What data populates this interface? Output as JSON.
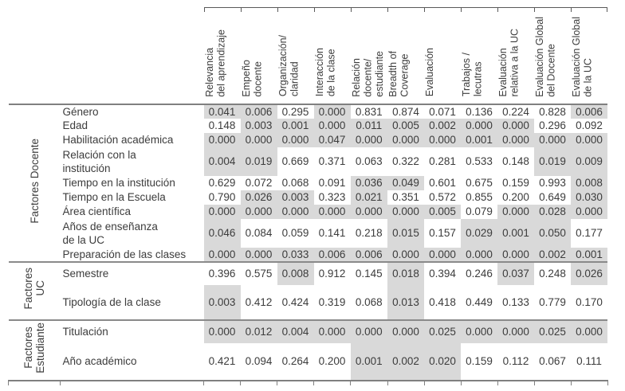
{
  "table": {
    "shade_threshold": 0.05,
    "shade_color": "#d9d9d9",
    "columns": [
      "Relevancia\ndel aprendizaje",
      "Empeño\ndocente",
      "Organización/\nclaridad",
      "Interacción\nde la clase",
      "Relación\ndocente/\nestudiante",
      "Breadth of\nCoverage",
      "Evaluación",
      "Trabajos /\nlecutras",
      "Evaluación\nrelativa a la UC",
      "Evaluación Global\ndel Docente",
      "Evaluación Global\nde la UC"
    ],
    "groups": [
      {
        "label": "Factores Docente",
        "rows": [
          {
            "label": "Género",
            "values": [
              "0.041",
              "0.006",
              "0.295",
              "0.000",
              "0.831",
              "0.874",
              "0.071",
              "0.136",
              "0.224",
              "0.828",
              "0.006"
            ]
          },
          {
            "label": "Edad",
            "values": [
              "0.148",
              "0.003",
              "0.001",
              "0.000",
              "0.011",
              "0.005",
              "0.002",
              "0.000",
              "0.000",
              "0.296",
              "0.092"
            ]
          },
          {
            "label": "Habilitación académica",
            "values": [
              "0.000",
              "0.000",
              "0.000",
              "0.047",
              "0.000",
              "0.000",
              "0.000",
              "0.001",
              "0.000",
              "0.000",
              "0.000"
            ]
          },
          {
            "label": "Relación con la\ninstitución",
            "values": [
              "0.004",
              "0.019",
              "0.669",
              "0.371",
              "0.063",
              "0.322",
              "0.281",
              "0.533",
              "0.148",
              "0.019",
              "0.009"
            ]
          },
          {
            "label": "Tiempo en la institución",
            "values": [
              "0.629",
              "0.072",
              "0.068",
              "0.091",
              "0.036",
              "0.049",
              "0.601",
              "0.675",
              "0.159",
              "0.993",
              "0.008"
            ]
          },
          {
            "label": "Tiempo en la Escuela",
            "values": [
              "0.790",
              "0.026",
              "0.003",
              "0.323",
              "0.021",
              "0.351",
              "0.572",
              "0.855",
              "0.200",
              "0.649",
              "0.030"
            ]
          },
          {
            "label": "Área científica",
            "values": [
              "0.000",
              "0.000",
              "0.000",
              "0.000",
              "0.000",
              "0.000",
              "0.005",
              "0.079",
              "0.000",
              "0.028",
              "0.000"
            ]
          },
          {
            "label": "Años de enseñanza\nde la UC",
            "values": [
              "0.046",
              "0.084",
              "0.059",
              "0.141",
              "0.218",
              "0.015",
              "0.157",
              "0.029",
              "0.001",
              "0.050",
              "0.177"
            ]
          },
          {
            "label": "Preparación de las clases",
            "values": [
              "0.000",
              "0.000",
              "0.033",
              "0.006",
              "0.006",
              "0.000",
              "0.000",
              "0.000",
              "0.000",
              "0.002",
              "0.001"
            ]
          }
        ]
      },
      {
        "label": "Factores\nUC",
        "rows": [
          {
            "label": "Semestre",
            "values": [
              "0.396",
              "0.575",
              "0.008",
              "0.912",
              "0.145",
              "0.018",
              "0.394",
              "0.246",
              "0.037",
              "0.248",
              "0.026"
            ]
          },
          {
            "label": "Tipología de la clase",
            "values": [
              "0.003",
              "0.412",
              "0.424",
              "0.319",
              "0.068",
              "0.013",
              "0.418",
              "0.449",
              "0.133",
              "0.779",
              "0.170"
            ]
          }
        ]
      },
      {
        "label": "Factores\nEstudiante",
        "rows": [
          {
            "label": "Titulación",
            "values": [
              "0.000",
              "0.012",
              "0.004",
              "0.000",
              "0.000",
              "0.000",
              "0.025",
              "0.000",
              "0.000",
              "0.025",
              "0.000"
            ]
          },
          {
            "label": "Año académico",
            "values": [
              "0.421",
              "0.094",
              "0.264",
              "0.200",
              "0.001",
              "0.002",
              "0.020",
              "0.159",
              "0.112",
              "0.067",
              "0.111"
            ]
          }
        ]
      }
    ]
  }
}
